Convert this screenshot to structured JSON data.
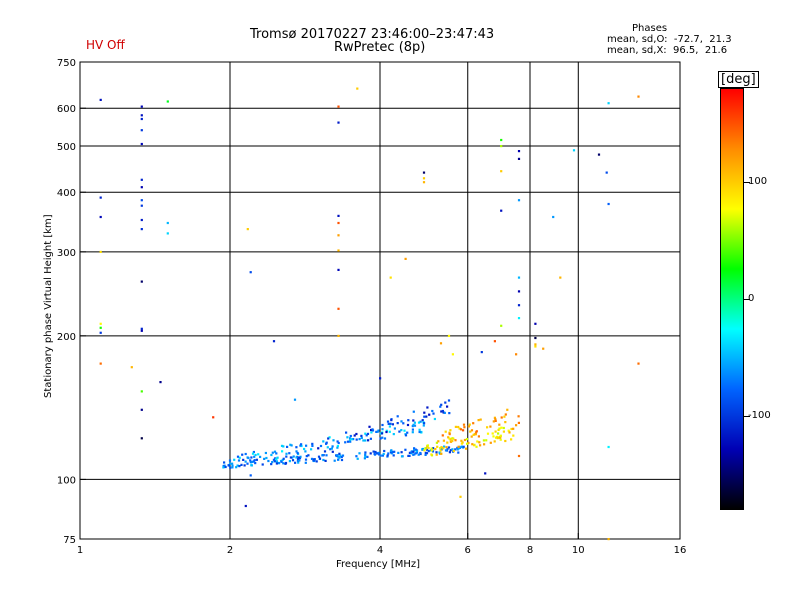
{
  "header": {
    "station_time": "Tromsø 20170227 23:46:00–23:47:43",
    "program": "RwPretec (8p)",
    "hv_status": "HV Off",
    "phases_title": "Phases",
    "phases_o": "mean, sd,O:  -72.7,  21.3",
    "phases_x": "mean, sd,X:  96.5,  21.6"
  },
  "colorbar": {
    "label": "[deg]",
    "ticks": [
      {
        "value": 100,
        "label": "100"
      },
      {
        "value": 0,
        "label": "0"
      },
      {
        "value": -100,
        "label": "-100"
      }
    ],
    "range": [
      -180,
      180
    ],
    "stops": [
      "#ff0000",
      "#ff8c00",
      "#ffff00",
      "#00ff00",
      "#00ffff",
      "#0064ff",
      "#0000b4",
      "#000000"
    ]
  },
  "chart_data": {
    "type": "scatter",
    "title": "Tromsø 20170227 23:46:00–23:47:43 RwPretec (8p)",
    "xlabel": "Frequency [MHz]",
    "ylabel": "Stationary phase Virtual Height [km]",
    "xscale": "log",
    "yscale": "log",
    "xlim": [
      1,
      16
    ],
    "ylim": [
      75,
      750
    ],
    "xticks": [
      1,
      2,
      4,
      6,
      8,
      10,
      16
    ],
    "xtick_labels": [
      "1",
      "2",
      "4",
      "6",
      "8",
      "10",
      "16"
    ],
    "xgrid": [
      2,
      4,
      6,
      8,
      10
    ],
    "yticks": [
      75,
      100,
      200,
      300,
      400,
      500,
      600,
      750
    ],
    "ytick_labels": [
      "75",
      "100",
      "200",
      "300",
      "400",
      "500",
      "600",
      "750"
    ],
    "ygrid": [
      100,
      200,
      300,
      400,
      500,
      600
    ],
    "point_color": "phase [deg]",
    "traces": [
      {
        "name": "low trace",
        "x0": 1.93,
        "x1": 5.9,
        "y0": 107.5,
        "y1": 116,
        "phase": -75,
        "n": 190,
        "jitter": 0.018
      },
      {
        "name": "mid trace",
        "x0": 2.0,
        "x1": 5.2,
        "y0": 109,
        "y1": 131,
        "phase": -58,
        "n": 110,
        "jitter": 0.03
      },
      {
        "name": "upper trace",
        "x0": 3.0,
        "x1": 5.6,
        "y0": 116,
        "y1": 142,
        "phase": -92,
        "n": 60,
        "jitter": 0.04
      },
      {
        "name": "x-mode trace",
        "x0": 4.9,
        "x1": 7.5,
        "y0": 115,
        "y1": 126,
        "phase": 92,
        "n": 80,
        "jitter": 0.035
      },
      {
        "name": "x-mode trace 2",
        "x0": 5.3,
        "x1": 7.6,
        "y0": 122,
        "y1": 135,
        "phase": 120,
        "n": 40,
        "jitter": 0.04
      }
    ],
    "points": [
      {
        "f": 1.1,
        "h": 625,
        "p": -120
      },
      {
        "f": 1.1,
        "h": 390,
        "p": -110
      },
      {
        "f": 1.1,
        "h": 355,
        "p": -125
      },
      {
        "f": 1.1,
        "h": 300,
        "p": 90
      },
      {
        "f": 1.1,
        "h": 212,
        "p": 80
      },
      {
        "f": 1.1,
        "h": 208,
        "p": 30
      },
      {
        "f": 1.1,
        "h": 203,
        "p": -100
      },
      {
        "f": 1.1,
        "h": 175,
        "p": 140
      },
      {
        "f": 1.33,
        "h": 605,
        "p": -125
      },
      {
        "f": 1.33,
        "h": 580,
        "p": -120
      },
      {
        "f": 1.33,
        "h": 570,
        "p": -110
      },
      {
        "f": 1.33,
        "h": 540,
        "p": -100
      },
      {
        "f": 1.33,
        "h": 505,
        "p": -125
      },
      {
        "f": 1.33,
        "h": 425,
        "p": -110
      },
      {
        "f": 1.33,
        "h": 410,
        "p": -130
      },
      {
        "f": 1.33,
        "h": 385,
        "p": -90
      },
      {
        "f": 1.33,
        "h": 375,
        "p": -100
      },
      {
        "f": 1.33,
        "h": 350,
        "p": -115
      },
      {
        "f": 1.33,
        "h": 335,
        "p": -105
      },
      {
        "f": 1.33,
        "h": 260,
        "p": -150
      },
      {
        "f": 1.33,
        "h": 207,
        "p": -110
      },
      {
        "f": 1.33,
        "h": 205,
        "p": -130
      },
      {
        "f": 1.33,
        "h": 140,
        "p": -140
      },
      {
        "f": 1.33,
        "h": 122,
        "p": -160
      },
      {
        "f": 1.5,
        "h": 620,
        "p": 20
      },
      {
        "f": 1.5,
        "h": 345,
        "p": -50
      },
      {
        "f": 1.5,
        "h": 328,
        "p": -40
      },
      {
        "f": 1.27,
        "h": 172,
        "p": 110
      },
      {
        "f": 1.33,
        "h": 153,
        "p": 40
      },
      {
        "f": 1.45,
        "h": 160,
        "p": -140
      },
      {
        "f": 1.85,
        "h": 135,
        "p": 160
      },
      {
        "f": 2.17,
        "h": 335,
        "p": 100
      },
      {
        "f": 2.2,
        "h": 272,
        "p": -90
      },
      {
        "f": 2.45,
        "h": 195,
        "p": -110
      },
      {
        "f": 2.7,
        "h": 147,
        "p": -60
      },
      {
        "f": 2.15,
        "h": 88,
        "p": -120
      },
      {
        "f": 2.2,
        "h": 102,
        "p": -80
      },
      {
        "f": 3.3,
        "h": 605,
        "p": 150
      },
      {
        "f": 3.3,
        "h": 560,
        "p": -115
      },
      {
        "f": 3.3,
        "h": 357,
        "p": -120
      },
      {
        "f": 3.3,
        "h": 345,
        "p": 150
      },
      {
        "f": 3.3,
        "h": 325,
        "p": 120
      },
      {
        "f": 3.3,
        "h": 302,
        "p": 110
      },
      {
        "f": 3.3,
        "h": 275,
        "p": -125
      },
      {
        "f": 3.3,
        "h": 228,
        "p": 150
      },
      {
        "f": 3.3,
        "h": 200,
        "p": 110
      },
      {
        "f": 3.6,
        "h": 660,
        "p": 100
      },
      {
        "f": 4.0,
        "h": 163,
        "p": -115
      },
      {
        "f": 4.5,
        "h": 290,
        "p": 120
      },
      {
        "f": 4.9,
        "h": 428,
        "p": 100
      },
      {
        "f": 4.9,
        "h": 420,
        "p": 110
      },
      {
        "f": 4.9,
        "h": 440,
        "p": -150
      },
      {
        "f": 5.3,
        "h": 193,
        "p": 120
      },
      {
        "f": 5.6,
        "h": 183,
        "p": 80
      },
      {
        "f": 5.5,
        "h": 200,
        "p": 80
      },
      {
        "f": 4.2,
        "h": 265,
        "p": 90
      },
      {
        "f": 5.8,
        "h": 92,
        "p": 100
      },
      {
        "f": 6.4,
        "h": 185,
        "p": -100
      },
      {
        "f": 6.8,
        "h": 195,
        "p": 150
      },
      {
        "f": 7.5,
        "h": 183,
        "p": 130
      },
      {
        "f": 7.0,
        "h": 515,
        "p": 30
      },
      {
        "f": 7.0,
        "h": 500,
        "p": 60
      },
      {
        "f": 7.0,
        "h": 443,
        "p": 100
      },
      {
        "f": 7.0,
        "h": 366,
        "p": -120
      },
      {
        "f": 7.0,
        "h": 210,
        "p": 60
      },
      {
        "f": 7.6,
        "h": 488,
        "p": -130
      },
      {
        "f": 7.6,
        "h": 470,
        "p": -140
      },
      {
        "f": 7.6,
        "h": 385,
        "p": -60
      },
      {
        "f": 7.6,
        "h": 265,
        "p": -50
      },
      {
        "f": 7.6,
        "h": 248,
        "p": -130
      },
      {
        "f": 7.6,
        "h": 232,
        "p": -110
      },
      {
        "f": 7.6,
        "h": 218,
        "p": -30
      },
      {
        "f": 7.5,
        "h": 130,
        "p": 120
      },
      {
        "f": 7.6,
        "h": 112,
        "p": 140
      },
      {
        "f": 7.2,
        "h": 140,
        "p": 110
      },
      {
        "f": 8.2,
        "h": 212,
        "p": -130
      },
      {
        "f": 8.2,
        "h": 198,
        "p": -160
      },
      {
        "f": 8.2,
        "h": 192,
        "p": 110
      },
      {
        "f": 8.2,
        "h": 190,
        "p": 90
      },
      {
        "f": 8.5,
        "h": 188,
        "p": 120
      },
      {
        "f": 8.9,
        "h": 355,
        "p": -60
      },
      {
        "f": 9.2,
        "h": 265,
        "p": 110
      },
      {
        "f": 9.8,
        "h": 490,
        "p": -40
      },
      {
        "f": 11.0,
        "h": 480,
        "p": -150
      },
      {
        "f": 11.4,
        "h": 440,
        "p": -90
      },
      {
        "f": 11.5,
        "h": 378,
        "p": -80
      },
      {
        "f": 11.5,
        "h": 615,
        "p": -40
      },
      {
        "f": 11.5,
        "h": 117,
        "p": -30
      },
      {
        "f": 11.5,
        "h": 75,
        "p": 110
      },
      {
        "f": 13.2,
        "h": 635,
        "p": 130
      },
      {
        "f": 13.2,
        "h": 175,
        "p": 140
      },
      {
        "f": 6.5,
        "h": 103,
        "p": -120
      }
    ]
  }
}
